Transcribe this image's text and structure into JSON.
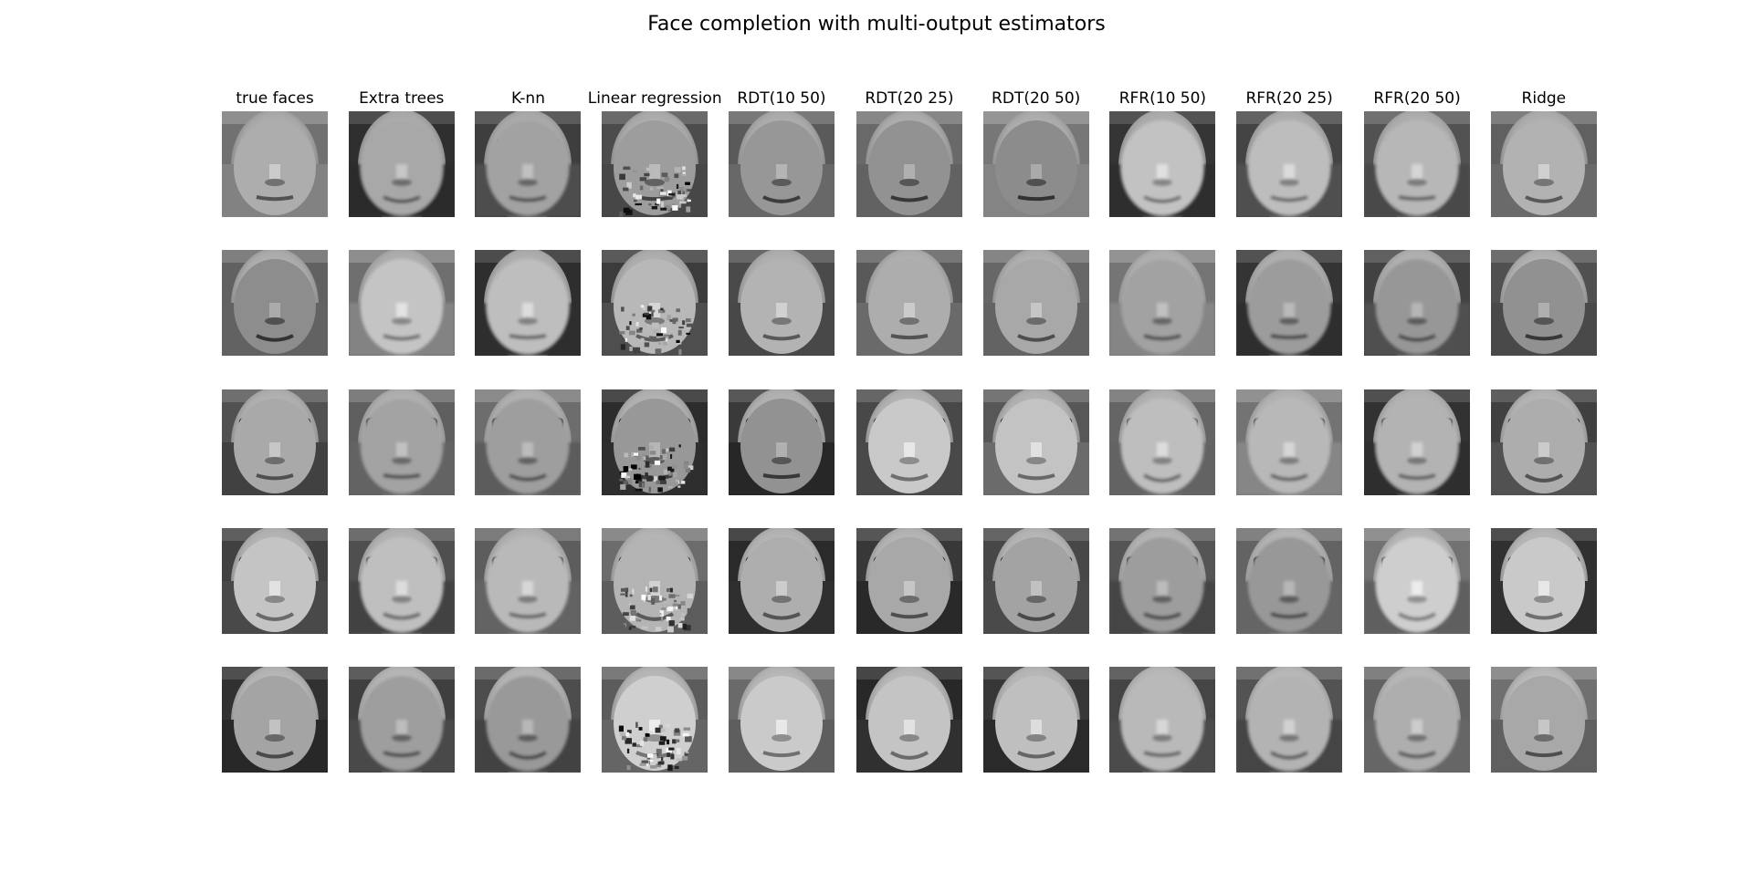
{
  "figure": {
    "title": "Face completion with multi-output estimators"
  },
  "columns": [
    {
      "label": "true faces"
    },
    {
      "label": "Extra trees"
    },
    {
      "label": "K-nn"
    },
    {
      "label": "Linear regression"
    },
    {
      "label": "RDT(10 50)"
    },
    {
      "label": "RDT(20 25)"
    },
    {
      "label": "RDT(20 50)"
    },
    {
      "label": "RFR(10 50)"
    },
    {
      "label": "RFR(20 25)"
    },
    {
      "label": "RFR(20 50)"
    },
    {
      "label": "Ridge"
    }
  ],
  "rows": 5,
  "colors": {
    "background": "#ffffff",
    "text": "#000000",
    "image_palette": "grayscale"
  }
}
